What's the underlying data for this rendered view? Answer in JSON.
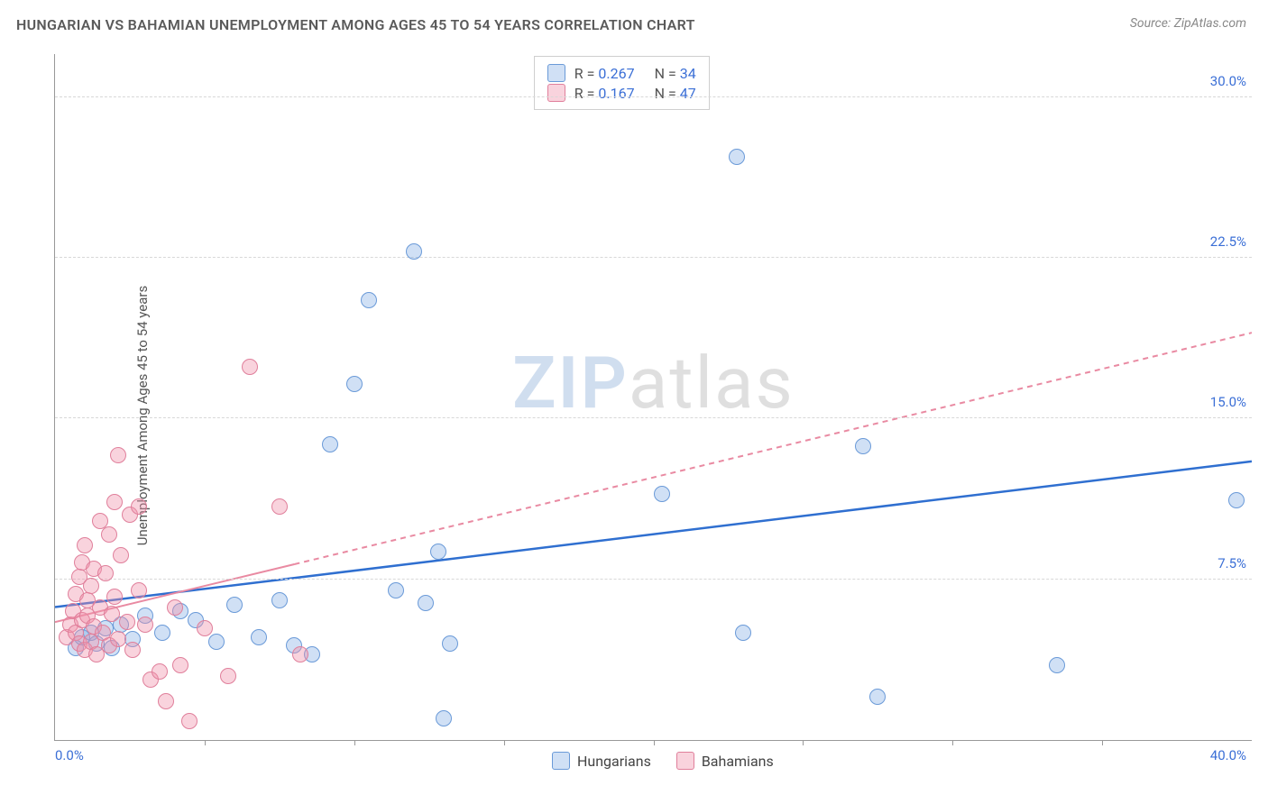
{
  "title": "HUNGARIAN VS BAHAMIAN UNEMPLOYMENT AMONG AGES 45 TO 54 YEARS CORRELATION CHART",
  "source_label": "Source: ZipAtlas.com",
  "ylabel": "Unemployment Among Ages 45 to 54 years",
  "watermark": {
    "part1": "ZIP",
    "part2": "atlas"
  },
  "chart": {
    "type": "scatter",
    "background_color": "#ffffff",
    "grid_color": "#d8d8d8",
    "axis_color": "#999999",
    "label_color": "#3b6fd6",
    "xlim": [
      0,
      40
    ],
    "ylim": [
      0,
      32
    ],
    "xtick_step": 5,
    "ytick_step": 7.5,
    "ytick_labels": [
      "7.5%",
      "15.0%",
      "22.5%",
      "30.0%"
    ],
    "x_min_label": "0.0%",
    "x_max_label": "40.0%",
    "marker_radius": 9,
    "marker_border_width": 1.5,
    "series": [
      {
        "name": "Hungarians",
        "fill_color": "rgba(120,165,225,0.35)",
        "stroke_color": "#6a9ad8",
        "trend_color": "#2f6fd0",
        "trend_width": 2.5,
        "trend_dash": "none",
        "trend": {
          "x1": 0,
          "y1": 6.2,
          "x2": 40,
          "y2": 13.0
        },
        "R": "0.267",
        "N": "34",
        "points": [
          [
            0.7,
            4.3
          ],
          [
            0.9,
            4.8
          ],
          [
            1.2,
            5.0
          ],
          [
            1.4,
            4.5
          ],
          [
            1.7,
            5.2
          ],
          [
            1.9,
            4.3
          ],
          [
            2.2,
            5.4
          ],
          [
            2.6,
            4.7
          ],
          [
            3.0,
            5.8
          ],
          [
            3.6,
            5.0
          ],
          [
            4.2,
            6.0
          ],
          [
            4.7,
            5.6
          ],
          [
            5.4,
            4.6
          ],
          [
            6.0,
            6.3
          ],
          [
            6.8,
            4.8
          ],
          [
            7.5,
            6.5
          ],
          [
            8.0,
            4.4
          ],
          [
            8.6,
            4.0
          ],
          [
            9.2,
            13.8
          ],
          [
            10.0,
            16.6
          ],
          [
            10.5,
            20.5
          ],
          [
            11.4,
            7.0
          ],
          [
            12.0,
            22.8
          ],
          [
            12.4,
            6.4
          ],
          [
            12.8,
            8.8
          ],
          [
            13.0,
            1.0
          ],
          [
            13.2,
            4.5
          ],
          [
            20.3,
            11.5
          ],
          [
            22.8,
            27.2
          ],
          [
            23.0,
            5.0
          ],
          [
            27.0,
            13.7
          ],
          [
            27.5,
            2.0
          ],
          [
            33.5,
            3.5
          ],
          [
            39.5,
            11.2
          ]
        ]
      },
      {
        "name": "Bahamians",
        "fill_color": "rgba(240,145,170,0.40)",
        "stroke_color": "#e07f9b",
        "trend_color": "#e98aa2",
        "trend_width": 2,
        "trend_dash": "6 5",
        "trend_solid_until_x": 8,
        "trend": {
          "x1": 0,
          "y1": 5.5,
          "x2": 40,
          "y2": 19.0
        },
        "R": "0.167",
        "N": "47",
        "points": [
          [
            0.4,
            4.8
          ],
          [
            0.5,
            5.4
          ],
          [
            0.6,
            6.0
          ],
          [
            0.7,
            5.0
          ],
          [
            0.7,
            6.8
          ],
          [
            0.8,
            4.5
          ],
          [
            0.8,
            7.6
          ],
          [
            0.9,
            5.6
          ],
          [
            0.9,
            8.3
          ],
          [
            1.0,
            4.2
          ],
          [
            1.0,
            9.1
          ],
          [
            1.1,
            5.8
          ],
          [
            1.1,
            6.5
          ],
          [
            1.2,
            4.6
          ],
          [
            1.2,
            7.2
          ],
          [
            1.3,
            5.3
          ],
          [
            1.3,
            8.0
          ],
          [
            1.4,
            4.0
          ],
          [
            1.5,
            6.2
          ],
          [
            1.5,
            10.2
          ],
          [
            1.6,
            5.0
          ],
          [
            1.7,
            7.8
          ],
          [
            1.8,
            4.4
          ],
          [
            1.8,
            9.6
          ],
          [
            1.9,
            5.9
          ],
          [
            2.0,
            6.7
          ],
          [
            2.0,
            11.1
          ],
          [
            2.1,
            4.7
          ],
          [
            2.1,
            13.3
          ],
          [
            2.2,
            8.6
          ],
          [
            2.4,
            5.5
          ],
          [
            2.5,
            10.5
          ],
          [
            2.6,
            4.2
          ],
          [
            2.8,
            7.0
          ],
          [
            2.8,
            10.9
          ],
          [
            3.0,
            5.4
          ],
          [
            3.2,
            2.8
          ],
          [
            3.5,
            3.2
          ],
          [
            3.7,
            1.8
          ],
          [
            4.0,
            6.2
          ],
          [
            4.2,
            3.5
          ],
          [
            4.5,
            0.9
          ],
          [
            5.0,
            5.2
          ],
          [
            5.8,
            3.0
          ],
          [
            6.5,
            17.4
          ],
          [
            7.5,
            10.9
          ],
          [
            8.2,
            4.0
          ]
        ]
      }
    ]
  },
  "legend_top": {
    "r_label": "R =",
    "n_label": "N ="
  },
  "legend_bottom": {
    "items": [
      "Hungarians",
      "Bahamians"
    ]
  }
}
